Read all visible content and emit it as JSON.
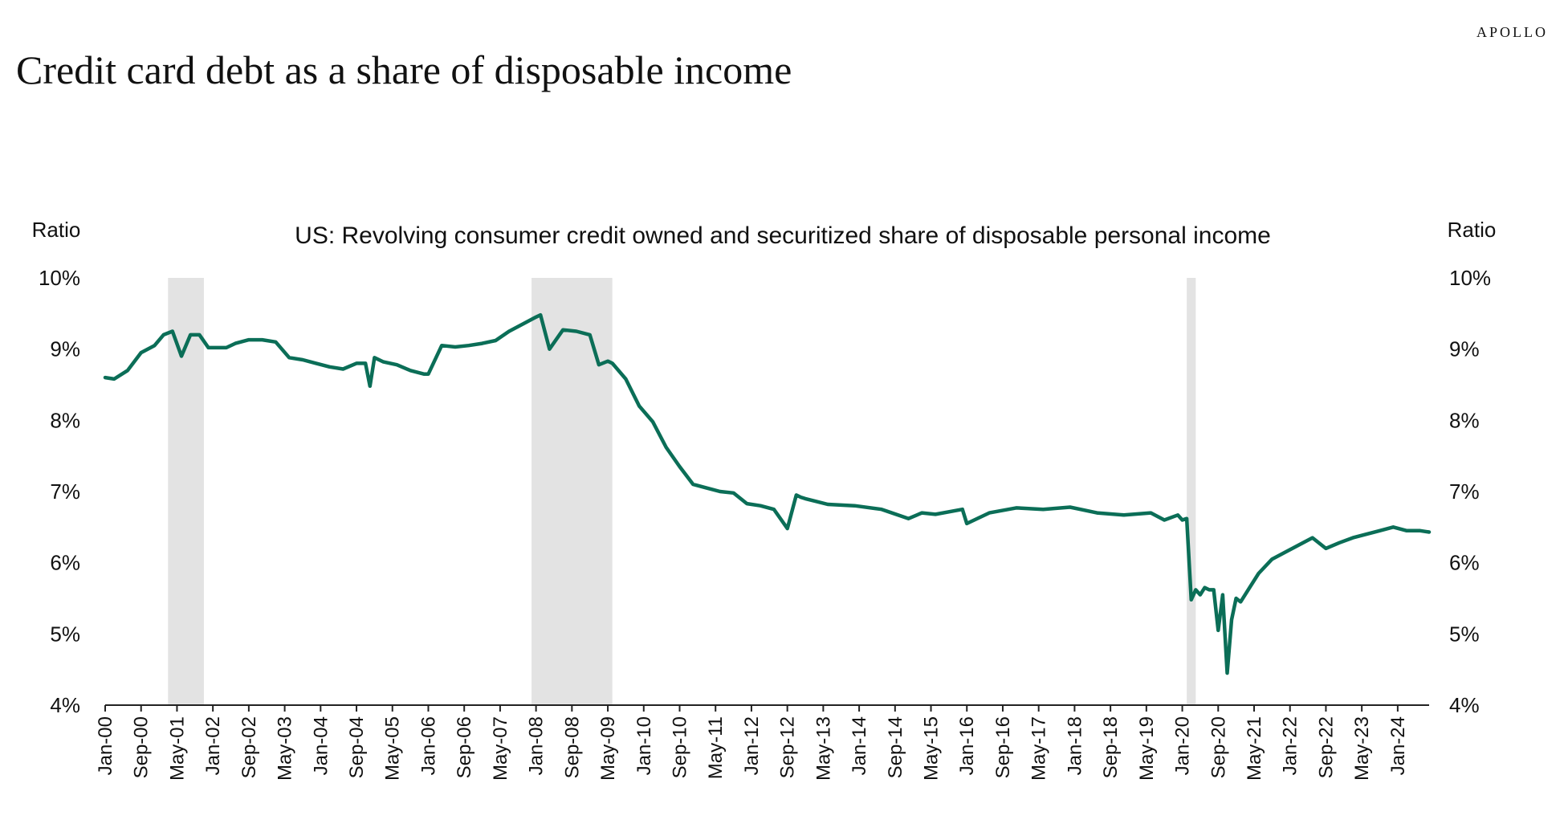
{
  "brand": "APOLLO",
  "title": "Credit card debt as a share of disposable income",
  "colors": {
    "line": "#0b6e57",
    "recession": "#e3e3e3",
    "axis": "#222222"
  },
  "chart_data": {
    "type": "line",
    "subtitle": "US: Revolving consumer credit owned and securitized share of disposable personal income",
    "ylabel_left": "Ratio",
    "ylabel_right": "Ratio",
    "ylim": [
      4,
      10
    ],
    "yticks": [
      "4%",
      "5%",
      "6%",
      "7%",
      "8%",
      "9%",
      "10%"
    ],
    "xlim": [
      "2000-01",
      "2024-08"
    ],
    "xtick_labels": [
      "Jan-00",
      "Sep-00",
      "May-01",
      "Jan-02",
      "Sep-02",
      "May-03",
      "Jan-04",
      "Sep-04",
      "May-05",
      "Jan-06",
      "Sep-06",
      "May-07",
      "Jan-08",
      "Sep-08",
      "May-09",
      "Jan-10",
      "Sep-10",
      "May-11",
      "Jan-12",
      "Sep-12",
      "May-13",
      "Jan-14",
      "Sep-14",
      "May-15",
      "Jan-16",
      "Sep-16",
      "May-17",
      "Jan-18",
      "Sep-18",
      "May-19",
      "Jan-20",
      "Sep-20",
      "May-21",
      "Jan-22",
      "Sep-22",
      "May-23",
      "Jan-24"
    ],
    "recessions": [
      [
        "2001-03",
        "2001-11"
      ],
      [
        "2007-12",
        "2009-06"
      ],
      [
        "2020-02",
        "2020-04"
      ]
    ],
    "grid": false,
    "series": [
      {
        "x": [
          "2000-01",
          "2000-03",
          "2000-06",
          "2000-09",
          "2000-12",
          "2001-02",
          "2001-04",
          "2001-06",
          "2001-08",
          "2001-10",
          "2001-12",
          "2002-02",
          "2002-04",
          "2002-06",
          "2002-09",
          "2002-12",
          "2003-03",
          "2003-06",
          "2003-09",
          "2003-12",
          "2004-03",
          "2004-06",
          "2004-09",
          "2004-11",
          "2004-12",
          "2005-01",
          "2005-03",
          "2005-06",
          "2005-09",
          "2005-12",
          "2006-01",
          "2006-04",
          "2006-07",
          "2006-10",
          "2007-01",
          "2007-04",
          "2007-07",
          "2007-10",
          "2008-01",
          "2008-02",
          "2008-04",
          "2008-07",
          "2008-10",
          "2009-01",
          "2009-03",
          "2009-05",
          "2009-06",
          "2009-09",
          "2009-12",
          "2010-03",
          "2010-06",
          "2010-09",
          "2010-12",
          "2011-03",
          "2011-06",
          "2011-09",
          "2011-12",
          "2012-03",
          "2012-06",
          "2012-09",
          "2012-11",
          "2012-12",
          "2013-01",
          "2013-06",
          "2013-12",
          "2014-06",
          "2014-12",
          "2015-03",
          "2015-06",
          "2015-12",
          "2016-01",
          "2016-06",
          "2016-12",
          "2017-06",
          "2017-12",
          "2018-06",
          "2018-12",
          "2019-06",
          "2019-09",
          "2019-12",
          "2020-01",
          "2020-02",
          "2020-03",
          "2020-04",
          "2020-05",
          "2020-06",
          "2020-07",
          "2020-08",
          "2020-09",
          "2020-10",
          "2020-11",
          "2020-12",
          "2021-01",
          "2021-02",
          "2021-03",
          "2021-04",
          "2021-06",
          "2021-09",
          "2021-12",
          "2022-03",
          "2022-06",
          "2022-09",
          "2022-12",
          "2023-03",
          "2023-06",
          "2023-09",
          "2023-12",
          "2024-03",
          "2024-06",
          "2024-08"
        ],
        "values": [
          8.6,
          8.58,
          8.7,
          8.95,
          9.05,
          9.2,
          9.25,
          8.9,
          9.2,
          9.2,
          9.02,
          9.02,
          9.02,
          9.08,
          9.13,
          9.13,
          9.1,
          8.88,
          8.85,
          8.8,
          8.75,
          8.72,
          8.8,
          8.8,
          8.48,
          8.88,
          8.82,
          8.78,
          8.7,
          8.65,
          8.65,
          9.05,
          9.03,
          9.05,
          9.08,
          9.12,
          9.25,
          9.35,
          9.45,
          9.48,
          9.0,
          9.27,
          9.25,
          9.2,
          8.78,
          8.83,
          8.8,
          8.58,
          8.2,
          7.98,
          7.62,
          7.35,
          7.1,
          7.05,
          7.0,
          6.98,
          6.83,
          6.8,
          6.75,
          6.48,
          6.95,
          6.92,
          6.9,
          6.82,
          6.8,
          6.75,
          6.62,
          6.7,
          6.68,
          6.75,
          6.55,
          6.7,
          6.77,
          6.75,
          6.78,
          6.7,
          6.67,
          6.7,
          6.6,
          6.67,
          6.6,
          6.62,
          5.48,
          5.62,
          5.55,
          5.65,
          5.62,
          5.62,
          5.05,
          5.55,
          4.45,
          5.2,
          5.5,
          5.45,
          5.55,
          5.65,
          5.85,
          6.05,
          6.15,
          6.25,
          6.35,
          6.2,
          6.28,
          6.35,
          6.4,
          6.45,
          6.5,
          6.45,
          6.45,
          6.43
        ]
      }
    ]
  }
}
